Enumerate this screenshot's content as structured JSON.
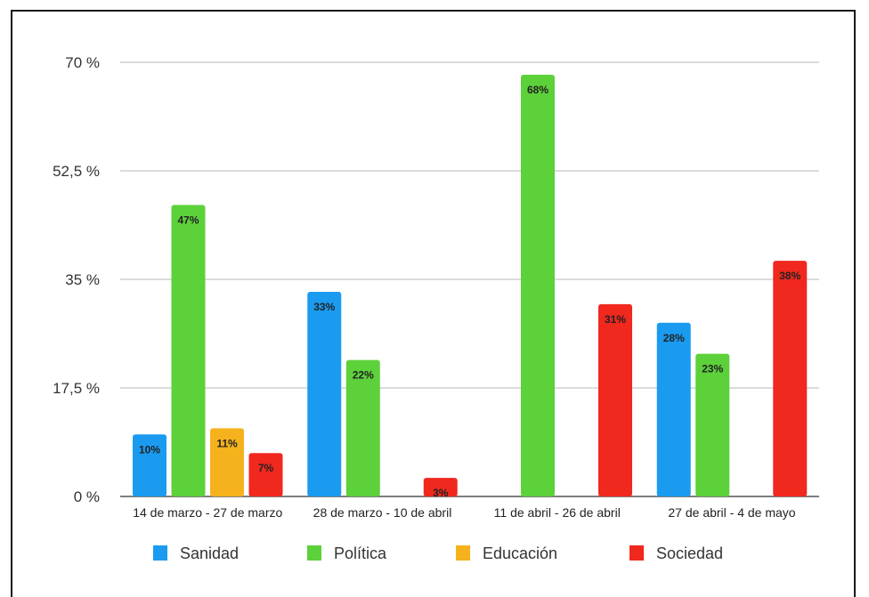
{
  "chart_data": {
    "type": "bar",
    "categories": [
      "14 de marzo - 27 de marzo",
      "28 de marzo - 10 de abril",
      "11 de abril - 26 de abril",
      "27 de abril - 4 de mayo"
    ],
    "series": [
      {
        "name": "Sanidad",
        "color": "#1a9bf0",
        "values": [
          10,
          33,
          null,
          28
        ],
        "labels": [
          "10%",
          "33%",
          "",
          "28%"
        ]
      },
      {
        "name": "Política",
        "color": "#5cd13a",
        "values": [
          47,
          22,
          68,
          23
        ],
        "labels": [
          "47%",
          "22%",
          "68%",
          "23%"
        ]
      },
      {
        "name": "Educación",
        "color": "#f5b21c",
        "values": [
          11,
          null,
          null,
          null
        ],
        "labels": [
          "11%",
          "",
          "",
          ""
        ]
      },
      {
        "name": "Sociedad",
        "color": "#f0281e",
        "values": [
          7,
          3,
          31,
          38
        ],
        "labels": [
          "7%",
          "3%",
          "31%",
          "38%"
        ]
      }
    ],
    "ylim": [
      0,
      70
    ],
    "yticks": [
      0,
      17.5,
      35,
      52.5,
      70
    ],
    "ytick_labels": [
      "0 %",
      "17,5 %",
      "35 %",
      "52,5 %",
      "70 %"
    ],
    "grid": true,
    "legend_position": "bottom"
  }
}
